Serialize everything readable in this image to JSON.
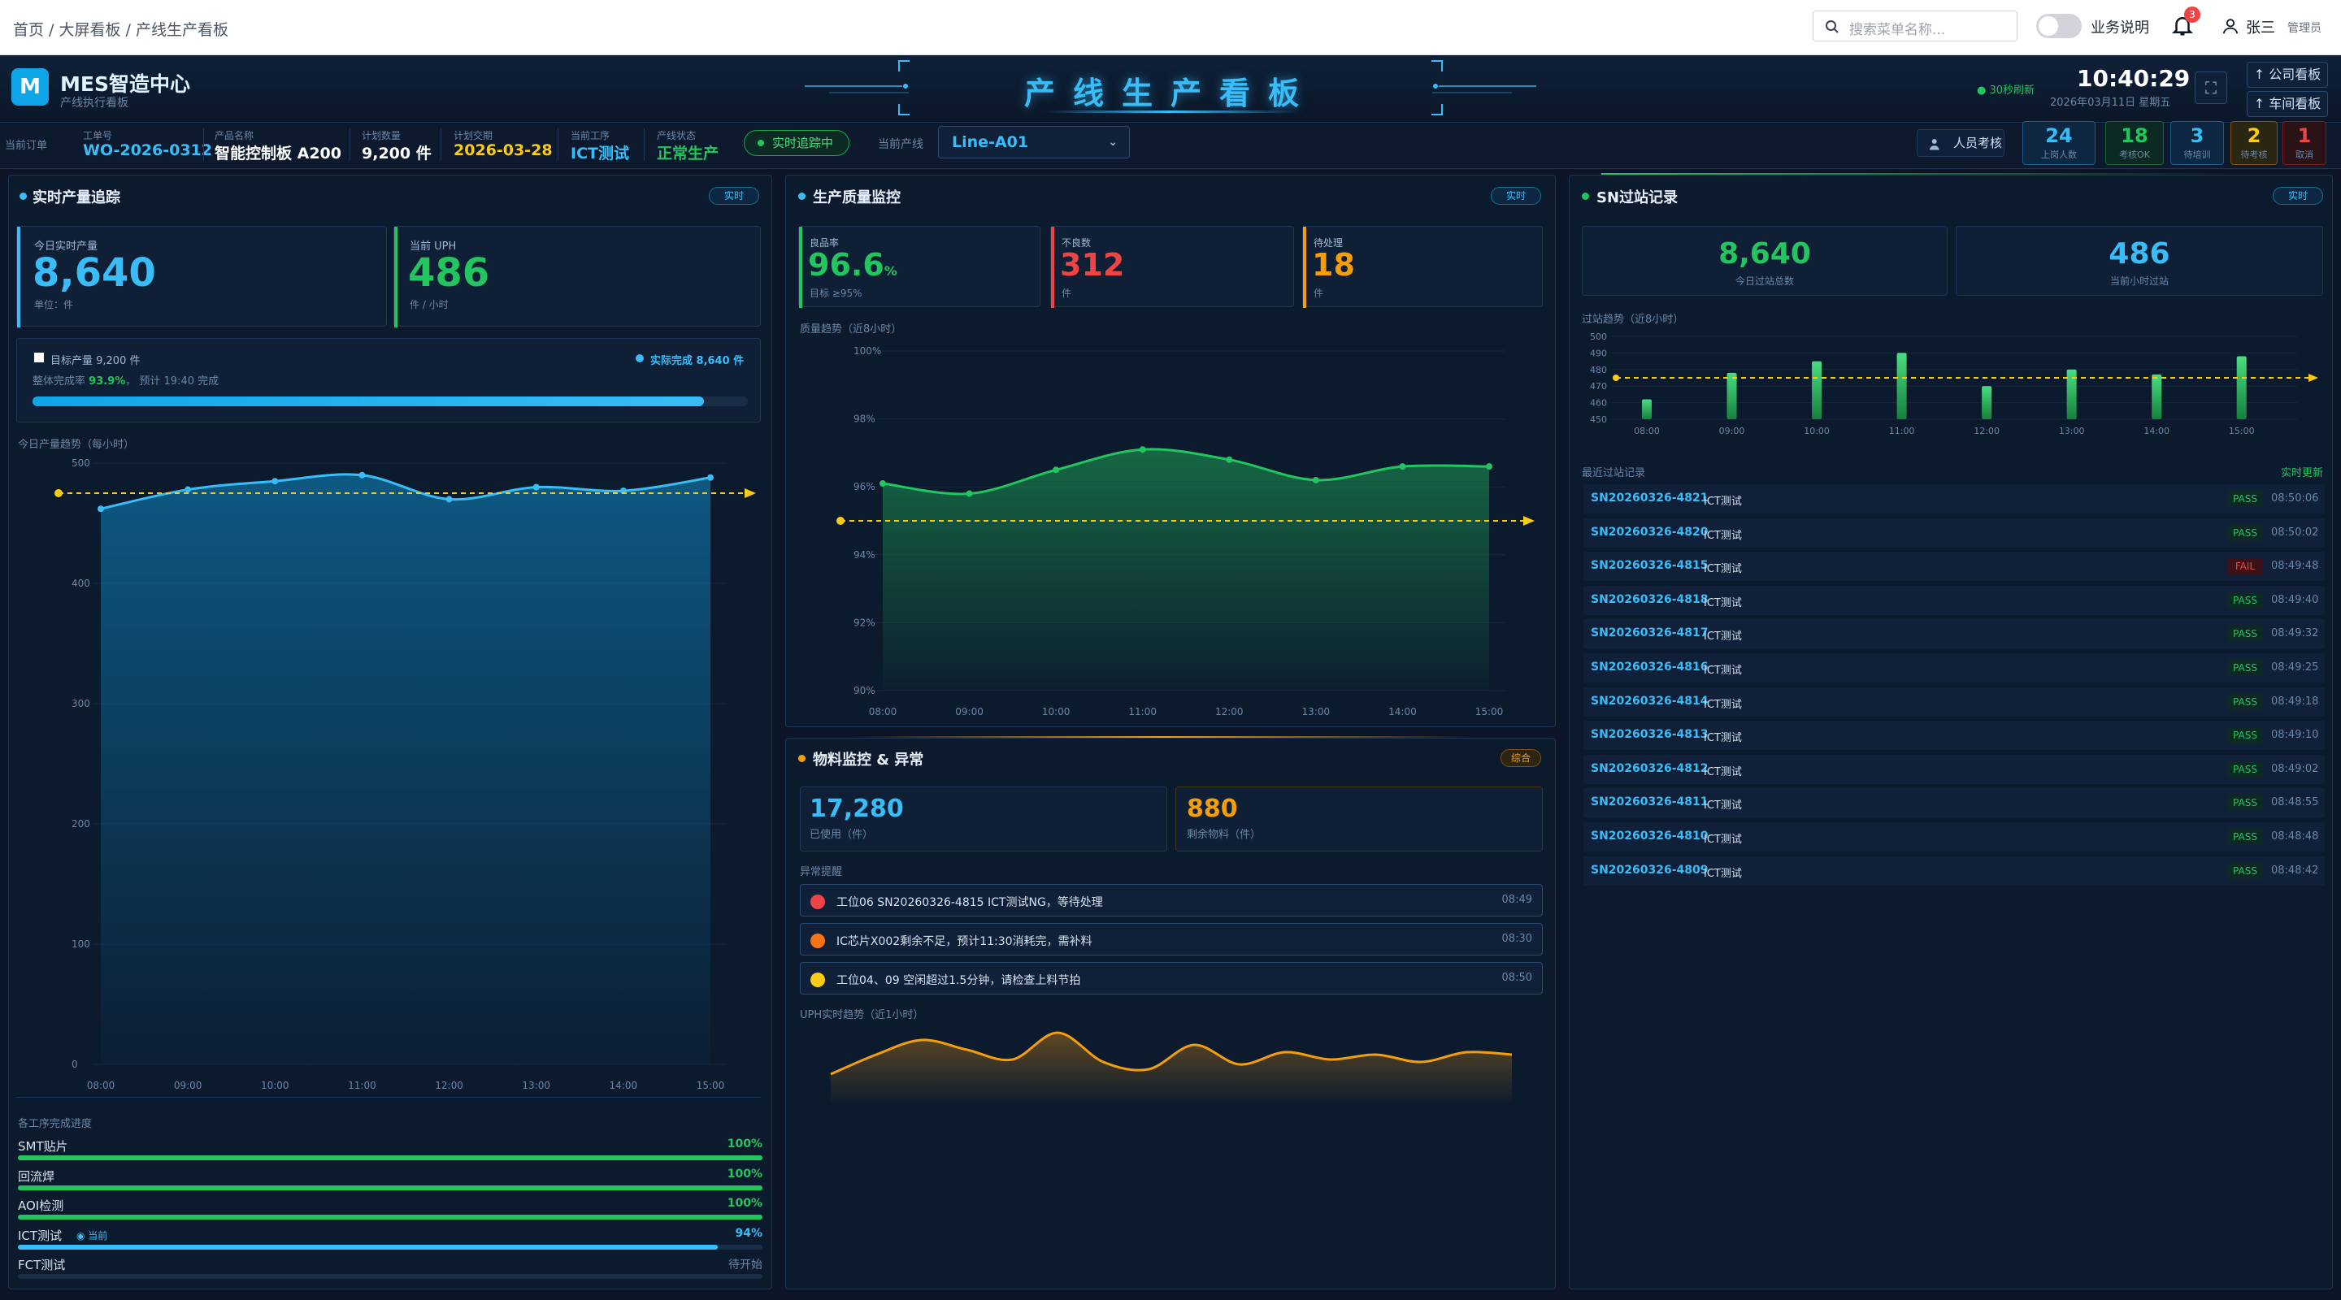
{
  "topbar": {
    "breadcrumb": "首页 / 大屏看板 / 产线生产看板",
    "search_placeholder": "搜索菜单名称...",
    "toggle_label": "业务说明",
    "notif_count": "3",
    "user_name": "张三",
    "user_role": "管理员"
  },
  "header": {
    "logo": "M",
    "app_title": "MES智造中心",
    "app_subtitle": "产线执行看板",
    "board_title": "产线生产看板",
    "refresh": "● 30秒刷新",
    "clock": "10:40:29",
    "date": "2026年03月11日 星期五",
    "nav_company": "↑ 公司看板",
    "nav_workshop": "↑ 车间看板"
  },
  "infobar": {
    "current_order_label": "当前订单",
    "fields": [
      {
        "label": "工单号",
        "value": "WO-2026-0312",
        "color": "#38bdf8"
      },
      {
        "label": "产品名称",
        "value": "智能控制板 A200",
        "color": "#ffffff"
      },
      {
        "label": "计划数量",
        "value": "9,200 件",
        "color": "#ffffff"
      },
      {
        "label": "计划交期",
        "value": "2026-03-28",
        "color": "#facc15"
      },
      {
        "label": "当前工序",
        "value": "ICT测试",
        "color": "#38bdf8"
      },
      {
        "label": "产线状态",
        "value": "正常生产",
        "color": "#22c55e"
      }
    ],
    "tracking": "实时追踪中",
    "line_label": "当前产线",
    "line_value": "Line-A01",
    "staff_button": "人员考核",
    "kpis": [
      {
        "value": "24",
        "label": "上岗人数",
        "color": "#38bdf8",
        "bg": "#0d2742",
        "border": "#1e5a8a"
      },
      {
        "value": "18",
        "label": "考核OK",
        "color": "#22c55e",
        "bg": "#0c2a23",
        "border": "#166534"
      },
      {
        "value": "3",
        "label": "待培训",
        "color": "#38bdf8",
        "bg": "#0d2742",
        "border": "#1e5a8a"
      },
      {
        "value": "2",
        "label": "待考核",
        "color": "#facc15",
        "bg": "#2a2612",
        "border": "#854d0e"
      },
      {
        "value": "1",
        "label": "取消",
        "color": "#ef4444",
        "bg": "#2a1216",
        "border": "#7f1d1d"
      }
    ]
  },
  "left_panel": {
    "title": "实时产量追踪",
    "tag": "实时",
    "today_output_label": "今日实时产量",
    "today_output": "8,640",
    "today_output_unit": "单位：件",
    "uph_label": "当前 UPH",
    "uph": "486",
    "uph_unit": "件 / 小时",
    "target_label": "目标产量 9,200 件",
    "actual_label": "实际完成 8,640 件",
    "completion_prefix": "整体完成率",
    "completion_rate": "93.9%",
    "eta": "预计 19:40 完成",
    "completion_fraction": 0.939,
    "chart_label": "今日产量趋势（每小时）",
    "process_label": "各工序完成进度",
    "processes": [
      {
        "name": "SMT贴片",
        "pct": "100%",
        "value": 1.0,
        "color": "#22c55e",
        "current": ""
      },
      {
        "name": "回流焊",
        "pct": "100%",
        "value": 1.0,
        "color": "#22c55e",
        "current": ""
      },
      {
        "name": "AOI检测",
        "pct": "100%",
        "value": 1.0,
        "color": "#22c55e",
        "current": ""
      },
      {
        "name": "ICT测试",
        "pct": "94%",
        "value": 0.94,
        "color": "#38bdf8",
        "current": "◉ 当前"
      },
      {
        "name": "FCT测试",
        "pct": "待开始",
        "value": 0,
        "color": "#22c55e",
        "current": ""
      }
    ]
  },
  "mid_panel": {
    "title": "生产质量监控",
    "tag": "实时",
    "yield_label": "良品率",
    "yield": "96.6",
    "yield_unit": "%",
    "yield_target": "目标 ≥95%",
    "defect_label": "不良数",
    "defect": "312",
    "defect_unit": "件",
    "pending_label": "待处理",
    "pending": "18",
    "pending_unit": "件",
    "chart_label": "质量趋势（近8小时）"
  },
  "material_panel": {
    "title": "物料监控 & 异常",
    "tag": "综合",
    "used": "17,280",
    "used_label": "已使用（件）",
    "remain": "880",
    "remain_label": "剩余物料（件）",
    "alert_label": "异常提醒",
    "alerts": [
      {
        "text": "工位06 SN20260326-4815 ICT测试NG，等待处理",
        "time": "08:49",
        "color": "#ef4444"
      },
      {
        "text": "IC芯片X002剩余不足，预计11:30消耗完，需补料",
        "time": "08:30",
        "color": "#f97316"
      },
      {
        "text": "工位04、09 空闲超过1.5分钟，请检查上料节拍",
        "time": "08:50",
        "color": "#facc15"
      }
    ],
    "uph_trend_label": "UPH实时趋势（近1小时）"
  },
  "right_panel": {
    "title": "SN过站记录",
    "tag": "实时",
    "today_pass": "8,640",
    "today_pass_label": "今日过站总数",
    "hour_pass": "486",
    "hour_pass_label": "当前小时过站",
    "chart_label": "过站趋势（近8小时）",
    "recent_label": "最近过站记录",
    "recent_tag": "实时更新",
    "records": [
      {
        "sn": "SN20260326-4821",
        "station": "ICT测试",
        "result": "PASS",
        "time": "08:50:06"
      },
      {
        "sn": "SN20260326-4820",
        "station": "ICT测试",
        "result": "PASS",
        "time": "08:50:02"
      },
      {
        "sn": "SN20260326-4815",
        "station": "ICT测试",
        "result": "FAIL",
        "time": "08:49:48"
      },
      {
        "sn": "SN20260326-4818",
        "station": "ICT测试",
        "result": "PASS",
        "time": "08:49:40"
      },
      {
        "sn": "SN20260326-4817",
        "station": "ICT测试",
        "result": "PASS",
        "time": "08:49:32"
      },
      {
        "sn": "SN20260326-4816",
        "station": "ICT测试",
        "result": "PASS",
        "time": "08:49:25"
      },
      {
        "sn": "SN20260326-4814",
        "station": "ICT测试",
        "result": "PASS",
        "time": "08:49:18"
      },
      {
        "sn": "SN20260326-4813",
        "station": "ICT测试",
        "result": "PASS",
        "time": "08:49:10"
      },
      {
        "sn": "SN20260326-4812",
        "station": "ICT测试",
        "result": "PASS",
        "time": "08:49:02"
      },
      {
        "sn": "SN20260326-4811",
        "station": "ICT测试",
        "result": "PASS",
        "time": "08:48:55"
      },
      {
        "sn": "SN20260326-4810",
        "station": "ICT测试",
        "result": "PASS",
        "time": "08:48:48"
      },
      {
        "sn": "SN20260326-4809",
        "station": "ICT测试",
        "result": "PASS",
        "time": "08:48:42"
      }
    ]
  },
  "chart_data": [
    {
      "type": "area",
      "x": [
        "08:00",
        "09:00",
        "10:00",
        "11:00",
        "12:00",
        "13:00",
        "14:00",
        "15:00"
      ],
      "values": [
        462,
        478,
        485,
        490,
        470,
        480,
        477,
        488
      ],
      "target": 475,
      "ylim": [
        0,
        500
      ],
      "yticks": [
        0,
        100,
        200,
        300,
        400,
        500
      ],
      "color": "#38bdf8"
    },
    {
      "type": "area",
      "x": [
        "08:00",
        "09:00",
        "10:00",
        "11:00",
        "12:00",
        "13:00",
        "14:00",
        "15:00"
      ],
      "values": [
        96.1,
        95.8,
        96.5,
        97.1,
        96.8,
        96.2,
        96.6,
        96.6
      ],
      "target": 95.0,
      "ylim": [
        90,
        100
      ],
      "yticks": [
        "90%",
        "92%",
        "94%",
        "96%",
        "98%",
        "100%"
      ],
      "color": "#22c55e"
    },
    {
      "type": "bar",
      "x": [
        "08:00",
        "09:00",
        "10:00",
        "11:00",
        "12:00",
        "13:00",
        "14:00",
        "15:00"
      ],
      "values": [
        462,
        478,
        485,
        490,
        470,
        480,
        477,
        488
      ],
      "target": 475,
      "ylim": [
        450,
        500
      ],
      "yticks": [
        450,
        460,
        470,
        480,
        490,
        500
      ],
      "color": "#22c55e"
    },
    {
      "type": "line",
      "values": [
        478,
        486,
        492,
        488,
        484,
        495,
        483,
        480,
        490,
        482,
        487,
        484,
        486,
        483,
        487,
        486
      ],
      "color": "#f59e0b"
    }
  ]
}
